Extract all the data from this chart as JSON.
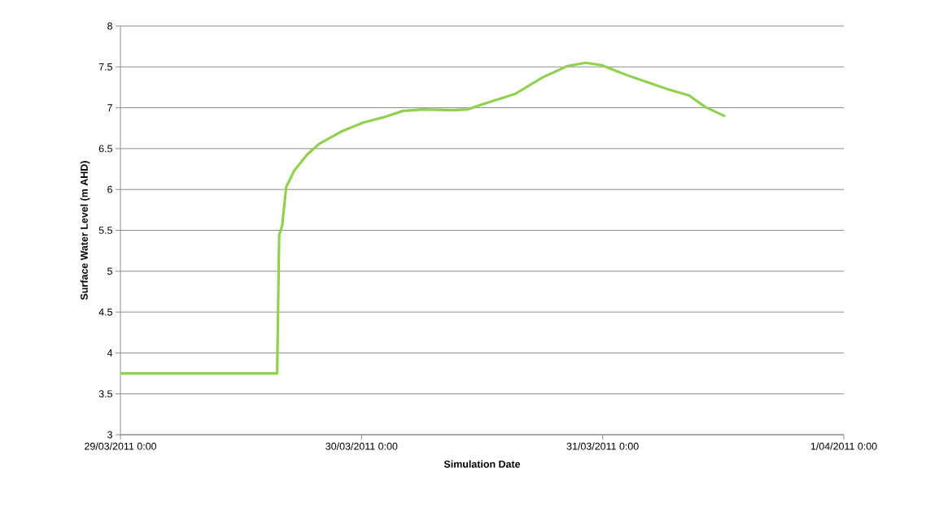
{
  "chart_data": {
    "type": "line",
    "xlabel": "Simulation Date",
    "ylabel": "Surface Water Level (m AHD)",
    "x": [
      "2011-03-29T00:00",
      "2011-03-29T15:36",
      "2011-03-29T15:48",
      "2011-03-29T16:06",
      "2011-03-29T16:30",
      "2011-03-29T17:18",
      "2011-03-29T18:36",
      "2011-03-29T19:48",
      "2011-03-29T22:00",
      "2011-03-30T00:12",
      "2011-03-30T02:06",
      "2011-03-30T04:06",
      "2011-03-30T06:06",
      "2011-03-30T09:00",
      "2011-03-30T10:36",
      "2011-03-30T12:00",
      "2011-03-30T15:18",
      "2011-03-30T18:00",
      "2011-03-30T20:30",
      "2011-03-30T22:18",
      "2011-03-30T23:54",
      "2011-03-31T02:36",
      "2011-03-31T06:24",
      "2011-03-31T08:36",
      "2011-03-31T10:12",
      "2011-03-31T12:06"
    ],
    "values": [
      3.75,
      3.75,
      5.44,
      5.56,
      6.03,
      6.23,
      6.43,
      6.56,
      6.71,
      6.82,
      6.88,
      6.96,
      6.98,
      6.97,
      6.98,
      7.04,
      7.17,
      7.37,
      7.51,
      7.55,
      7.52,
      7.39,
      7.23,
      7.15,
      7.01,
      6.9
    ],
    "color": "#92d050",
    "xlim": [
      "2011-03-29T00:00",
      "2011-04-01T00:00"
    ],
    "xticks": [
      {
        "value": "2011-03-29T00:00",
        "label": "29/03/2011 0:00"
      },
      {
        "value": "2011-03-30T00:00",
        "label": "30/03/2011 0:00"
      },
      {
        "value": "2011-03-31T00:00",
        "label": "31/03/2011 0:00"
      },
      {
        "value": "2011-04-01T00:00",
        "label": "1/04/2011 0:00"
      }
    ],
    "ylim": [
      3,
      8
    ],
    "yticks": [
      3,
      3.5,
      4,
      4.5,
      5,
      5.5,
      6,
      6.5,
      7,
      7.5,
      8
    ],
    "grid": "y"
  }
}
